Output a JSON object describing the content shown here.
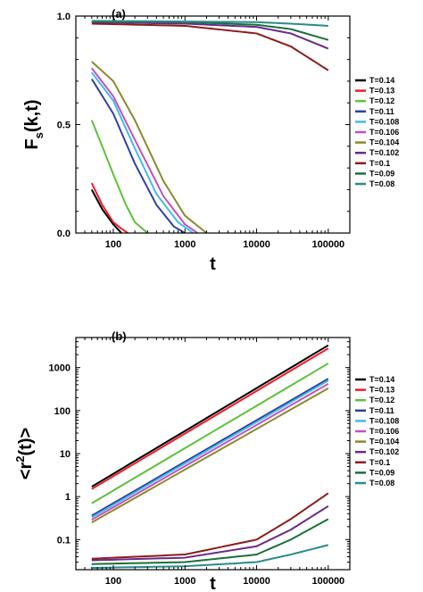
{
  "chart_data": [
    {
      "panel": "(a)",
      "type": "line",
      "xlabel": "t",
      "ylabel_parts": {
        "main": "F",
        "sub": "s",
        "rest": "(k,t)"
      },
      "xscale": "log",
      "xlim": [
        30,
        200000
      ],
      "ylim": [
        0.0,
        1.0
      ],
      "xticks": [
        100,
        1000,
        10000,
        100000
      ],
      "xtick_labels": [
        "100",
        "1000",
        "10000",
        "100000"
      ],
      "yticks": [
        0.0,
        0.5,
        1.0
      ],
      "ytick_labels": [
        "0.0",
        "0.5",
        "1.0"
      ],
      "legend_position": "right",
      "series": [
        {
          "name": "T=0.14",
          "color": "#000000",
          "x": [
            50,
            70,
            100,
            130
          ],
          "y": [
            0.2,
            0.11,
            0.04,
            0.0
          ]
        },
        {
          "name": "T=0.13",
          "color": "#ee1c25",
          "x": [
            50,
            70,
            100,
            130,
            160
          ],
          "y": [
            0.23,
            0.13,
            0.05,
            0.02,
            0.0
          ]
        },
        {
          "name": "T=0.12",
          "color": "#5ec13a",
          "x": [
            50,
            70,
            100,
            150,
            200,
            300
          ],
          "y": [
            0.52,
            0.4,
            0.27,
            0.13,
            0.05,
            0.0
          ]
        },
        {
          "name": "T=0.11",
          "color": "#3040a0",
          "x": [
            50,
            100,
            200,
            400,
            700,
            1000
          ],
          "y": [
            0.71,
            0.55,
            0.32,
            0.13,
            0.03,
            0.0
          ]
        },
        {
          "name": "T=0.108",
          "color": "#3fbbe8",
          "x": [
            50,
            100,
            200,
            400,
            800,
            1300
          ],
          "y": [
            0.74,
            0.61,
            0.39,
            0.18,
            0.05,
            0.0
          ]
        },
        {
          "name": "T=0.106",
          "color": "#c84fb8",
          "x": [
            50,
            100,
            200,
            500,
            1000,
            1500
          ],
          "y": [
            0.76,
            0.63,
            0.43,
            0.17,
            0.04,
            0.0
          ]
        },
        {
          "name": "T=0.104",
          "color": "#8a8a2a",
          "x": [
            50,
            100,
            200,
            500,
            1000,
            2000
          ],
          "y": [
            0.79,
            0.7,
            0.52,
            0.24,
            0.08,
            0.0
          ]
        },
        {
          "name": "T=0.102",
          "color": "#6a2a8a",
          "x": [
            50,
            1000,
            10000,
            30000,
            100000
          ],
          "y": [
            0.972,
            0.965,
            0.95,
            0.92,
            0.85
          ]
        },
        {
          "name": "T=0.1",
          "color": "#8b1c1c",
          "x": [
            50,
            1000,
            10000,
            30000,
            100000
          ],
          "y": [
            0.965,
            0.955,
            0.92,
            0.86,
            0.75
          ]
        },
        {
          "name": "T=0.09",
          "color": "#18703a",
          "x": [
            50,
            1000,
            10000,
            30000,
            100000
          ],
          "y": [
            0.975,
            0.972,
            0.96,
            0.94,
            0.89
          ]
        },
        {
          "name": "T=0.08",
          "color": "#2a8a8a",
          "x": [
            50,
            1000,
            10000,
            30000,
            100000
          ],
          "y": [
            0.978,
            0.975,
            0.972,
            0.965,
            0.955
          ]
        }
      ]
    },
    {
      "panel": "(b)",
      "type": "line",
      "xlabel": "t",
      "ylabel_parts": {
        "main": "<r",
        "sup": "2",
        "rest": "(t)>"
      },
      "xscale": "log",
      "yscale": "log",
      "xlim": [
        30,
        200000
      ],
      "ylim": [
        0.02,
        5000
      ],
      "xticks": [
        100,
        1000,
        10000,
        100000
      ],
      "xtick_labels": [
        "100",
        "1000",
        "10000",
        "100000"
      ],
      "yticks": [
        0.1,
        1,
        10,
        100,
        1000
      ],
      "ytick_labels": [
        "0.1",
        "1",
        "10",
        "100",
        "1000"
      ],
      "legend_position": "right",
      "series": [
        {
          "name": "T=0.14",
          "color": "#000000",
          "x": [
            50,
            100000
          ],
          "y": [
            1.7,
            3300
          ]
        },
        {
          "name": "T=0.13",
          "color": "#ee1c25",
          "x": [
            50,
            100000
          ],
          "y": [
            1.5,
            2800
          ]
        },
        {
          "name": "T=0.12",
          "color": "#5ec13a",
          "x": [
            50,
            100000
          ],
          "y": [
            0.7,
            1250
          ]
        },
        {
          "name": "T=0.11",
          "color": "#3040a0",
          "x": [
            50,
            100000
          ],
          "y": [
            0.36,
            550
          ]
        },
        {
          "name": "T=0.108",
          "color": "#3fbbe8",
          "x": [
            50,
            100000
          ],
          "y": [
            0.33,
            500
          ]
        },
        {
          "name": "T=0.106",
          "color": "#c84fb8",
          "x": [
            50,
            100000
          ],
          "y": [
            0.29,
            420
          ]
        },
        {
          "name": "T=0.104",
          "color": "#8a8a2a",
          "x": [
            50,
            100000
          ],
          "y": [
            0.25,
            330
          ]
        },
        {
          "name": "T=0.102",
          "color": "#6a2a8a",
          "x": [
            50,
            1000,
            10000,
            30000,
            100000
          ],
          "y": [
            0.033,
            0.038,
            0.07,
            0.17,
            0.6
          ]
        },
        {
          "name": "T=0.1",
          "color": "#8b1c1c",
          "x": [
            50,
            1000,
            10000,
            30000,
            100000
          ],
          "y": [
            0.036,
            0.045,
            0.1,
            0.3,
            1.2
          ]
        },
        {
          "name": "T=0.09",
          "color": "#18703a",
          "x": [
            50,
            1000,
            10000,
            30000,
            100000
          ],
          "y": [
            0.027,
            0.03,
            0.045,
            0.1,
            0.3
          ]
        },
        {
          "name": "T=0.08",
          "color": "#2a8a8a",
          "x": [
            50,
            1000,
            10000,
            30000,
            100000
          ],
          "y": [
            0.022,
            0.024,
            0.03,
            0.045,
            0.075
          ]
        }
      ]
    }
  ]
}
